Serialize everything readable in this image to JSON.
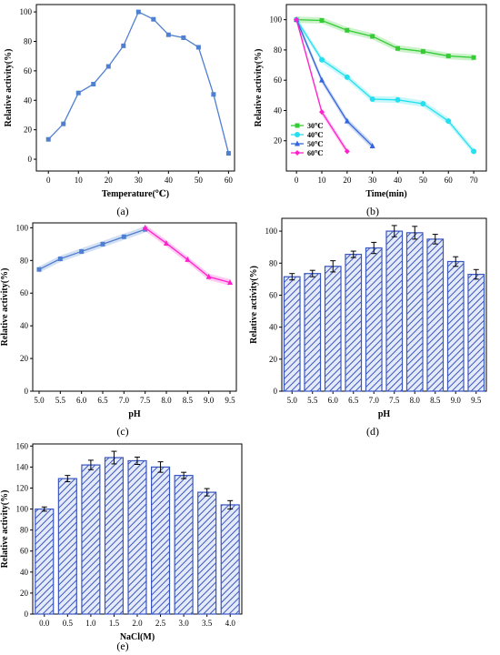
{
  "chart_data": [
    {
      "id": "a",
      "type": "line",
      "panel_label": "(a)",
      "xlabel": "Temperature(℃)",
      "ylabel": "Relative activity(%)",
      "xlim": [
        -4,
        62
      ],
      "ylim": [
        -8,
        105
      ],
      "xticks": [
        0,
        10,
        20,
        30,
        40,
        50,
        60
      ],
      "yticks": [
        0,
        20,
        40,
        60,
        80,
        100
      ],
      "color": "#4f7fd0",
      "series": [
        {
          "x": [
            0,
            5,
            10,
            15,
            20,
            25,
            30,
            35,
            40,
            45,
            50,
            55,
            60
          ],
          "y": [
            13.5,
            24,
            45,
            51,
            63,
            77,
            100,
            95,
            84.5,
            82.5,
            76,
            44,
            4
          ]
        }
      ]
    },
    {
      "id": "b",
      "type": "line",
      "panel_label": "(b)",
      "xlabel": "Time(min)",
      "ylabel": "Relative activity(%)",
      "xlim": [
        -4,
        75
      ],
      "ylim": [
        0,
        110
      ],
      "xticks": [
        0,
        10,
        20,
        30,
        40,
        50,
        60,
        70
      ],
      "yticks": [
        20,
        40,
        60,
        80,
        100
      ],
      "legend_position": "bottom-left",
      "series": [
        {
          "name": "30℃",
          "color": "#33cc33",
          "marker": "square",
          "x": [
            0,
            10,
            20,
            30,
            40,
            50,
            60,
            70
          ],
          "y": [
            100,
            99.5,
            93,
            89,
            81,
            79,
            76,
            75
          ]
        },
        {
          "name": "40℃",
          "color": "#22e0f0",
          "marker": "circle",
          "x": [
            0,
            10,
            20,
            30,
            40,
            50,
            60,
            70
          ],
          "y": [
            100,
            73.5,
            62,
            47.5,
            47,
            44.5,
            33,
            13
          ]
        },
        {
          "name": "50℃",
          "color": "#3366dd",
          "marker": "triangle",
          "x": [
            0,
            10,
            20,
            30
          ],
          "y": [
            100,
            60,
            33,
            16.5
          ]
        },
        {
          "name": "60℃",
          "color": "#ff22cc",
          "marker": "diamond",
          "x": [
            0,
            10,
            20
          ],
          "y": [
            100,
            39,
            13
          ]
        }
      ]
    },
    {
      "id": "c",
      "type": "line",
      "panel_label": "(c)",
      "xlabel": "pH",
      "ylabel": "Relative activity(%)",
      "xlim": [
        4.85,
        9.65
      ],
      "ylim": [
        0,
        103
      ],
      "xticks": [
        "5.0",
        "5.5",
        "6.0",
        "6.5",
        "7.0",
        "7.5",
        "8.0",
        "8.5",
        "9.0",
        "9.5"
      ],
      "yticks": [
        0,
        20,
        40,
        60,
        80,
        100
      ],
      "series": [
        {
          "color": "#4f7fd0",
          "marker": "square",
          "x": [
            5.0,
            5.5,
            6.0,
            6.5,
            7.0,
            7.5
          ],
          "y": [
            74.5,
            81,
            85.5,
            90,
            94.5,
            99
          ]
        },
        {
          "color": "#ff22cc",
          "marker": "triangle",
          "x": [
            7.5,
            8.0,
            8.5,
            9.0,
            9.5
          ],
          "y": [
            100,
            90.5,
            80.5,
            70,
            66.5
          ]
        }
      ]
    },
    {
      "id": "d",
      "type": "bar",
      "panel_label": "(d)",
      "xlabel": "pH",
      "ylabel": "Relative activity(%)",
      "ylim": [
        0,
        108
      ],
      "yticks": [
        0,
        20,
        40,
        60,
        80,
        100
      ],
      "categories": [
        "5.0",
        "5.5",
        "6.0",
        "6.5",
        "7.0",
        "7.5",
        "8.0",
        "8.5",
        "9.0",
        "9.5"
      ],
      "values": [
        71.5,
        73.5,
        78,
        85.5,
        89.5,
        100,
        99,
        95,
        81,
        73
      ],
      "errors": [
        2,
        2,
        3.5,
        2,
        3.5,
        3.5,
        4,
        3,
        3,
        3
      ]
    },
    {
      "id": "e",
      "type": "bar",
      "panel_label": "(e)",
      "xlabel": "NaCl(M)",
      "ylabel": "Relative activity(%)",
      "ylim": [
        0,
        162
      ],
      "yticks": [
        0,
        20,
        40,
        60,
        80,
        100,
        120,
        140,
        160
      ],
      "categories": [
        "0.0",
        "0.5",
        "1.0",
        "1.5",
        "2.0",
        "2.5",
        "3.0",
        "3.5",
        "4.0"
      ],
      "values": [
        100,
        129,
        142,
        149,
        146,
        140,
        132,
        116,
        104
      ],
      "errors": [
        2,
        3,
        4.5,
        6,
        3.5,
        5,
        3,
        3.5,
        4
      ]
    }
  ]
}
